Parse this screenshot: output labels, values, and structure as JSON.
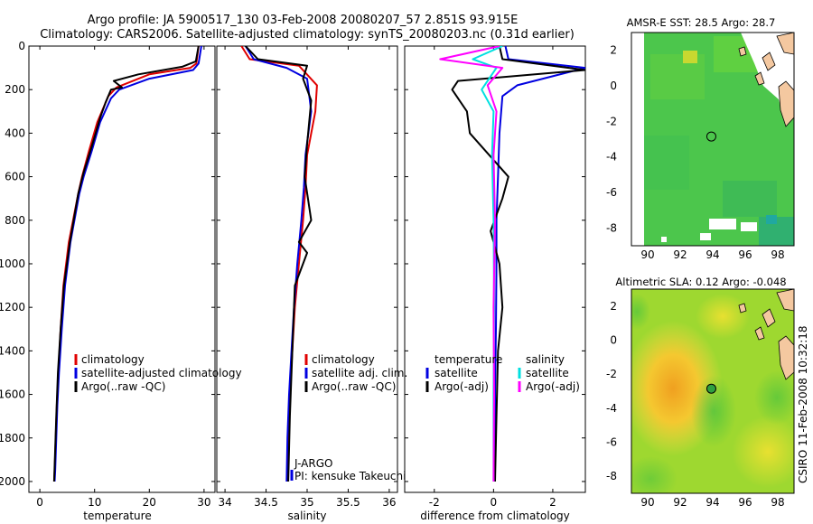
{
  "header": {
    "line1": "Argo profile: JA 5900517_130 03-Feb-2008 20080207_57 2.851S 93.915E",
    "line2": "Climatology: CARS2006. Satellite-adjusted climatology: synTS_20080203.nc (0.31d earlier)"
  },
  "colors": {
    "climatology": "#e00000",
    "satellite": "#0000e0",
    "argo": "#000000",
    "satellite_salinity": "#00e0e0",
    "argo_adj_salinity": "#ff00ff"
  },
  "chart_data": [
    {
      "type": "line",
      "xlabel": "temperature",
      "ylabel": "",
      "xlim": [
        -2,
        32
      ],
      "ylim": [
        2050,
        0
      ],
      "xticks": [
        0,
        10,
        20,
        30
      ],
      "yticks": [
        0,
        200,
        400,
        600,
        800,
        1000,
        1200,
        1400,
        1600,
        1800,
        2000
      ],
      "legend": [
        "climatology",
        "satellite-adjusted climatology",
        "Argo(..raw -QC)"
      ],
      "series": [
        {
          "name": "climatology",
          "color": "#e00000",
          "x": [
            29,
            28.6,
            27.5,
            20,
            14,
            12.5,
            10.5,
            9,
            7.7,
            7,
            5.3,
            4.3,
            3.8,
            3.4,
            3.1,
            2.9,
            2.7,
            2.6
          ],
          "y": [
            0,
            80,
            100,
            130,
            190,
            230,
            350,
            480,
            600,
            680,
            900,
            1100,
            1300,
            1500,
            1650,
            1800,
            1950,
            2000
          ]
        },
        {
          "name": "satellite-adjusted climatology",
          "color": "#0000e0",
          "x": [
            29.5,
            29,
            28,
            20,
            14.5,
            13,
            11,
            9.5,
            8,
            7.2,
            5.6,
            4.6,
            4,
            3.5,
            3.2,
            3,
            2.8,
            2.7
          ],
          "y": [
            0,
            80,
            110,
            150,
            200,
            240,
            350,
            480,
            600,
            680,
            900,
            1100,
            1300,
            1500,
            1650,
            1800,
            1950,
            2000
          ]
        },
        {
          "name": "Argo(..raw -QC)",
          "color": "#000000",
          "x": [
            29,
            28.5,
            26,
            18,
            13.5,
            15,
            13,
            12,
            11,
            9.5,
            8,
            7,
            5.5,
            4.4,
            3.8,
            3.3,
            3,
            2.8,
            2.6
          ],
          "y": [
            0,
            70,
            95,
            130,
            160,
            190,
            200,
            260,
            330,
            460,
            580,
            680,
            900,
            1100,
            1300,
            1500,
            1700,
            1850,
            2000
          ]
        }
      ]
    },
    {
      "type": "line",
      "xlabel": "salinity",
      "ylabel": "",
      "xlim": [
        33.9,
        36.1
      ],
      "ylim": [
        2050,
        0
      ],
      "xticks": [
        34,
        34.5,
        35,
        35.5,
        36
      ],
      "legend": [
        "climatology",
        "satellite adj. clim.",
        "Argo(..raw -QC)"
      ],
      "annotation": [
        "J-ARGO",
        "PI: kensuke Takeuchi"
      ],
      "series": [
        {
          "name": "climatology",
          "color": "#e00000",
          "x": [
            34.2,
            34.3,
            34.9,
            35.12,
            35.1,
            35.0,
            34.98,
            34.95,
            34.9,
            34.85,
            34.82,
            34.79,
            34.77,
            34.76
          ],
          "y": [
            0,
            60,
            90,
            180,
            300,
            500,
            650,
            800,
            1000,
            1200,
            1400,
            1600,
            1800,
            2000
          ]
        },
        {
          "name": "satellite adj. clim.",
          "color": "#0000e0",
          "x": [
            34.25,
            34.35,
            34.75,
            35.0,
            35.05,
            34.98,
            34.96,
            34.93,
            34.88,
            34.84,
            34.81,
            34.78,
            34.76,
            34.75
          ],
          "y": [
            0,
            60,
            100,
            150,
            300,
            500,
            650,
            800,
            1000,
            1200,
            1400,
            1600,
            1800,
            2000
          ]
        },
        {
          "name": "Argo(..raw -QC)",
          "color": "#000000",
          "x": [
            34.25,
            34.4,
            35.0,
            34.95,
            35.05,
            35.0,
            34.97,
            35.05,
            34.9,
            35.0,
            34.85,
            34.82,
            34.79,
            34.77
          ],
          "y": [
            0,
            60,
            90,
            150,
            250,
            450,
            600,
            800,
            900,
            950,
            1100,
            1400,
            1700,
            2000
          ]
        }
      ]
    },
    {
      "type": "line",
      "xlabel": "difference from climatology",
      "ylabel": "",
      "xlim": [
        -3,
        3.1
      ],
      "ylim": [
        2050,
        0
      ],
      "xticks": [
        -2,
        0,
        2
      ],
      "legend_left_title": "temperature",
      "legend_left": [
        "satellite",
        "Argo(-adj)"
      ],
      "legend_right_title": "salinity",
      "legend_right": [
        "satellite",
        "Argo(-adj)"
      ],
      "series": [
        {
          "name": "satellite",
          "group": "temperature",
          "color": "#0000e0",
          "x": [
            0.4,
            0.5,
            3.1,
            0.8,
            0.3,
            0.2,
            0.15,
            0.1,
            0.1,
            0.08,
            0.05,
            0.05
          ],
          "y": [
            0,
            60,
            100,
            180,
            230,
            400,
            600,
            800,
            1000,
            1300,
            1600,
            2000
          ]
        },
        {
          "name": "Argo(-adj)",
          "group": "temperature",
          "color": "#000000",
          "x": [
            0.2,
            0.3,
            3.1,
            -1.2,
            -1.4,
            -0.9,
            -0.8,
            0.5,
            0.3,
            -0.1,
            0.2,
            0.3,
            0.15,
            0.1,
            0.05
          ],
          "y": [
            0,
            60,
            110,
            160,
            200,
            300,
            400,
            600,
            700,
            850,
            1000,
            1200,
            1400,
            1700,
            2000
          ]
        },
        {
          "name": "satellite",
          "group": "salinity",
          "color": "#00e0e0",
          "x": [
            0.3,
            -0.7,
            0.1,
            -0.4,
            0.0,
            -0.05,
            0.0,
            0.02,
            0.0,
            0.0
          ],
          "y": [
            0,
            60,
            100,
            200,
            300,
            500,
            800,
            1200,
            1600,
            2000
          ]
        },
        {
          "name": "Argo(-adj)",
          "group": "salinity",
          "color": "#ff00ff",
          "x": [
            0.2,
            -1.8,
            0.3,
            -0.2,
            0.1,
            0.0,
            0.05,
            0.0,
            0.02,
            0.0
          ],
          "y": [
            0,
            60,
            100,
            180,
            300,
            500,
            800,
            1200,
            1600,
            2000
          ]
        }
      ]
    },
    {
      "type": "heatmap",
      "title": "AMSR-E SST: 28.5 Argo: 28.7",
      "xlim": [
        89,
        99
      ],
      "ylim": [
        -9,
        3
      ],
      "xticks": [
        90,
        92,
        94,
        96,
        98
      ],
      "yticks": [
        2,
        0,
        -2,
        -4,
        -6,
        -8
      ],
      "marker": {
        "x": 93.915,
        "y": -2.851
      }
    },
    {
      "type": "heatmap",
      "title": "Altimetric SLA: 0.12 Argo: -0.048",
      "xlim": [
        89,
        99
      ],
      "ylim": [
        -9,
        3
      ],
      "xticks": [
        90,
        92,
        94,
        96,
        98
      ],
      "yticks": [
        2,
        0,
        -2,
        -4,
        -6,
        -8
      ],
      "marker": {
        "x": 93.915,
        "y": -2.851
      }
    }
  ],
  "footer_stamp": "CSIRO 11-Feb-2008 10:32:18"
}
